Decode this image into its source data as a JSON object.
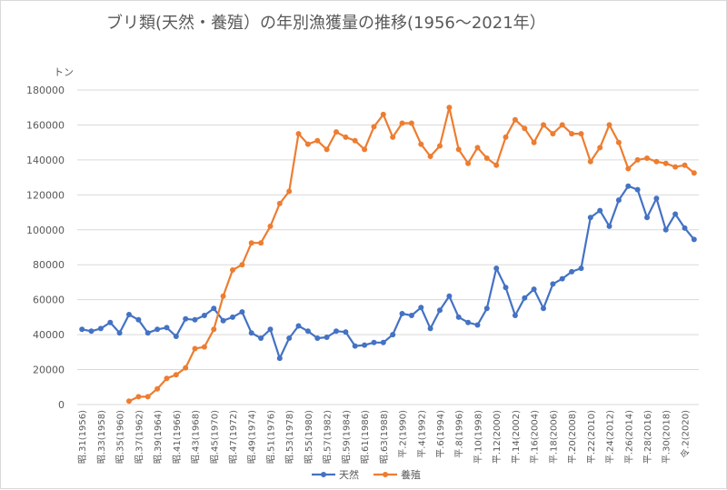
{
  "chart_data": {
    "type": "line",
    "title": "ブリ類(天然・養殖）の年別漁獲量の推移(1956〜2021年）",
    "y_unit": "トン",
    "ylim": [
      0,
      180000
    ],
    "yticks": [
      "0",
      "20000",
      "40000",
      "60000",
      "80000",
      "100000",
      "120000",
      "140000",
      "160000",
      "180000"
    ],
    "grid": "horizontal",
    "legend_position": "bottom",
    "x": [
      1956,
      1957,
      1958,
      1959,
      1960,
      1961,
      1962,
      1963,
      1964,
      1965,
      1966,
      1967,
      1968,
      1969,
      1970,
      1971,
      1972,
      1973,
      1974,
      1975,
      1976,
      1977,
      1978,
      1979,
      1980,
      1981,
      1982,
      1983,
      1984,
      1985,
      1986,
      1987,
      1988,
      1989,
      1990,
      1991,
      1992,
      1993,
      1994,
      1995,
      1996,
      1997,
      1998,
      1999,
      2000,
      2001,
      2002,
      2003,
      2004,
      2005,
      2006,
      2007,
      2008,
      2009,
      2010,
      2011,
      2012,
      2013,
      2014,
      2015,
      2016,
      2017,
      2018,
      2019,
      2020,
      2021
    ],
    "x_tick_labels": [
      "昭.31(1956)",
      "昭.33(1958)",
      "昭.35(1960)",
      "昭.37(1962)",
      "昭.39(1964)",
      "昭.41(1966)",
      "昭.43(1968)",
      "昭.45(1970)",
      "昭.47(1972)",
      "昭.49(1974)",
      "昭.51(1976)",
      "昭.53(1978)",
      "昭.55(1980)",
      "昭.57(1982)",
      "昭.59(1984)",
      "昭.61(1986)",
      "昭.63(1988)",
      "平.2(1990)",
      "平.4(1992)",
      "平.6(1994)",
      "平.8(1996)",
      "平.10(1998)",
      "平.12(2000)",
      "平.14(2002)",
      "平.16(2004)",
      "平.18(2006)",
      "平.20(2008)",
      "平.22(2010)",
      "平.24(2012)",
      "平.26(2014)",
      "平.28(2016)",
      "平.30(2018)",
      "令.2(2020)"
    ],
    "series": [
      {
        "name": "天然",
        "color": "#4472c4",
        "values": [
          43000,
          42000,
          43500,
          47000,
          41000,
          51500,
          48500,
          41000,
          43000,
          44000,
          39000,
          49000,
          48500,
          51000,
          55000,
          48000,
          50000,
          53000,
          41000,
          38000,
          43000,
          26500,
          38000,
          45000,
          42000,
          38000,
          38500,
          42000,
          41500,
          33500,
          34000,
          35500,
          35500,
          40000,
          52000,
          51000,
          55500,
          43500,
          54000,
          62000,
          50000,
          47000,
          45500,
          55000,
          78000,
          67000,
          51000,
          61000,
          66000,
          55000,
          69000,
          72000,
          76000,
          78000,
          107000,
          111000,
          102000,
          117000,
          125000,
          123000,
          107000,
          118000,
          100000,
          109000,
          101000,
          94500
        ]
      },
      {
        "name": "養殖",
        "color": "#ed7d31",
        "values": [
          null,
          null,
          null,
          null,
          null,
          2000,
          4500,
          4500,
          9000,
          15000,
          17000,
          21000,
          32000,
          33000,
          43000,
          62000,
          77000,
          80000,
          92500,
          92500,
          102000,
          115000,
          122000,
          155000,
          149000,
          151000,
          146000,
          156000,
          153000,
          151000,
          146000,
          159000,
          166000,
          153000,
          161000,
          161000,
          149000,
          142000,
          148000,
          170000,
          146000,
          138000,
          147000,
          141000,
          137000,
          153000,
          163000,
          158000,
          150000,
          160000,
          155000,
          160000,
          155000,
          155000,
          139000,
          147000,
          160000,
          150000,
          135000,
          140000,
          141000,
          139000,
          138000,
          136000,
          137000,
          132500
        ]
      }
    ]
  }
}
